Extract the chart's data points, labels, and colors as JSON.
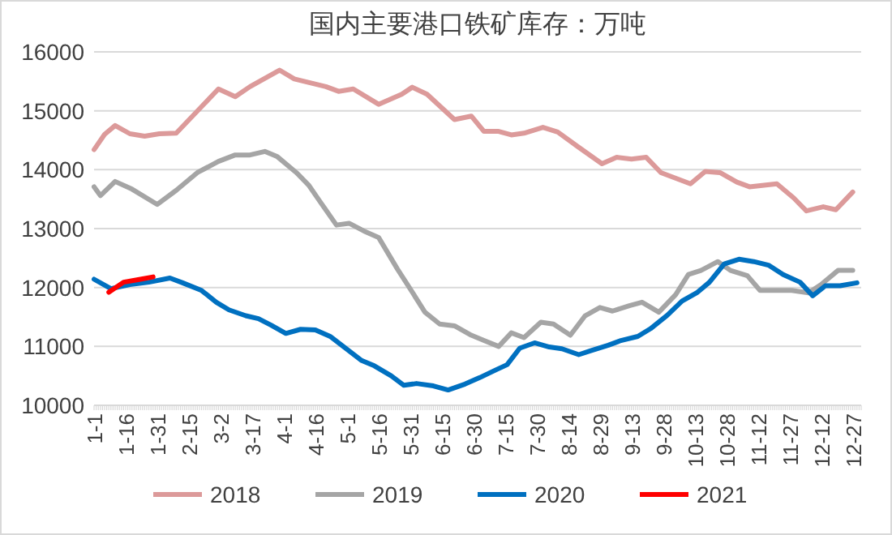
{
  "chart_data": {
    "type": "line",
    "title": "国内主要港口铁矿库存：万吨",
    "xlim": [
      "--01-01",
      "--12-31"
    ],
    "xticks": [
      {
        "value": "--01-01",
        "label": "1-1"
      },
      {
        "value": "--01-16",
        "label": "1-16"
      },
      {
        "value": "--01-31",
        "label": "1-31"
      },
      {
        "value": "--02-15",
        "label": "2-15"
      },
      {
        "value": "--03-02",
        "label": "3-2"
      },
      {
        "value": "--03-17",
        "label": "3-17"
      },
      {
        "value": "--04-01",
        "label": "4-1"
      },
      {
        "value": "--04-16",
        "label": "4-16"
      },
      {
        "value": "--05-01",
        "label": "5-1"
      },
      {
        "value": "--05-16",
        "label": "5-16"
      },
      {
        "value": "--05-31",
        "label": "5-31"
      },
      {
        "value": "--06-15",
        "label": "6-15"
      },
      {
        "value": "--06-30",
        "label": "6-30"
      },
      {
        "value": "--07-15",
        "label": "7-15"
      },
      {
        "value": "--07-30",
        "label": "7-30"
      },
      {
        "value": "--08-14",
        "label": "8-14"
      },
      {
        "value": "--08-29",
        "label": "8-29"
      },
      {
        "value": "--09-13",
        "label": "9-13"
      },
      {
        "value": "--09-28",
        "label": "9-28"
      },
      {
        "value": "--10-13",
        "label": "10-13"
      },
      {
        "value": "--10-28",
        "label": "10-28"
      },
      {
        "value": "--11-12",
        "label": "11-12"
      },
      {
        "value": "--11-27",
        "label": "11-27"
      },
      {
        "value": "--12-12",
        "label": "12-12"
      },
      {
        "value": "--12-27",
        "label": "12-27"
      }
    ],
    "ylim": [
      10000,
      16000
    ],
    "yticks": [
      10000,
      11000,
      12000,
      13000,
      14000,
      15000,
      16000
    ],
    "grid": "y",
    "legend": "bottom",
    "marker": "none",
    "line_style": "solid",
    "series": [
      {
        "name": "2018",
        "color": "#dc9a9a",
        "x": [
          "--01-01",
          "--01-06",
          "--01-11",
          "--01-18",
          "--01-25",
          "--02-01",
          "--02-09",
          "--03-01",
          "--03-09",
          "--03-16",
          "--03-30",
          "--04-06",
          "--04-21",
          "--04-27",
          "--05-04",
          "--05-16",
          "--05-27",
          "--06-01",
          "--06-08",
          "--06-21",
          "--06-29",
          "--07-05",
          "--07-12",
          "--07-18",
          "--07-24",
          "--08-02",
          "--08-09",
          "--08-19",
          "--08-30",
          "--09-06",
          "--09-13",
          "--09-20",
          "--09-27",
          "--10-11",
          "--10-18",
          "--10-25",
          "--11-02",
          "--11-08",
          "--11-21",
          "--11-29",
          "--12-05",
          "--12-13",
          "--12-19",
          "--12-27"
        ],
        "values": [
          14340,
          14600,
          14750,
          14610,
          14570,
          14610,
          14620,
          15370,
          15240,
          15410,
          15690,
          15540,
          15410,
          15330,
          15370,
          15110,
          15280,
          15400,
          15280,
          14850,
          14910,
          14650,
          14650,
          14590,
          14620,
          14720,
          14640,
          14380,
          14100,
          14210,
          14180,
          14210,
          13950,
          13760,
          13970,
          13950,
          13790,
          13710,
          13760,
          13520,
          13300,
          13370,
          13320,
          13620
        ]
      },
      {
        "name": "2019",
        "color": "#a5a5a5",
        "x": [
          "--01-01",
          "--01-04",
          "--01-11",
          "--01-19",
          "--01-31",
          "--02-09",
          "--02-19",
          "--03-01",
          "--03-09",
          "--03-16",
          "--03-23",
          "--03-29",
          "--04-07",
          "--04-13",
          "--04-18",
          "--04-26",
          "--05-02",
          "--05-09",
          "--05-16",
          "--05-25",
          "--06-01",
          "--06-07",
          "--06-14",
          "--06-21",
          "--06-29",
          "--07-05",
          "--07-12",
          "--07-18",
          "--07-24",
          "--08-01",
          "--08-07",
          "--08-15",
          "--08-22",
          "--08-29",
          "--09-04",
          "--09-12",
          "--09-18",
          "--09-26",
          "--10-04",
          "--10-10",
          "--10-16",
          "--10-24",
          "--10-30",
          "--11-07",
          "--11-13",
          "--11-22",
          "--11-28",
          "--12-06",
          "--12-12",
          "--12-20",
          "--12-27"
        ],
        "values": [
          13710,
          13560,
          13800,
          13670,
          13410,
          13650,
          13950,
          14140,
          14250,
          14250,
          14310,
          14220,
          13950,
          13730,
          13470,
          13060,
          13090,
          12960,
          12850,
          12310,
          11920,
          11580,
          11380,
          11350,
          11190,
          11100,
          11000,
          11230,
          11150,
          11410,
          11380,
          11190,
          11520,
          11660,
          11600,
          11690,
          11750,
          11580,
          11880,
          12220,
          12290,
          12440,
          12290,
          12200,
          11950,
          11950,
          11950,
          11910,
          12050,
          12290,
          12290
        ]
      },
      {
        "name": "2020",
        "color": "#0070c0",
        "x": [
          "--01-01",
          "--01-09",
          "--01-18",
          "--01-27",
          "--02-06",
          "--02-12",
          "--02-21",
          "--02-28",
          "--03-06",
          "--03-14",
          "--03-20",
          "--03-26",
          "--04-02",
          "--04-09",
          "--04-16",
          "--04-23",
          "--05-01",
          "--05-08",
          "--05-14",
          "--05-22",
          "--05-28",
          "--06-03",
          "--06-11",
          "--06-18",
          "--06-26",
          "--07-03",
          "--07-10",
          "--07-16",
          "--07-22",
          "--07-29",
          "--08-05",
          "--08-11",
          "--08-19",
          "--08-25",
          "--09-02",
          "--09-08",
          "--09-16",
          "--09-22",
          "--09-30",
          "--10-07",
          "--10-14",
          "--10-20",
          "--10-27",
          "--11-03",
          "--11-10",
          "--11-17",
          "--11-24",
          "--12-02",
          "--12-08",
          "--12-14",
          "--12-21",
          "--12-29"
        ],
        "values": [
          12140,
          11980,
          12050,
          12090,
          12160,
          12080,
          11950,
          11750,
          11620,
          11520,
          11470,
          11360,
          11220,
          11290,
          11280,
          11170,
          10950,
          10760,
          10670,
          10500,
          10340,
          10370,
          10330,
          10260,
          10360,
          10470,
          10590,
          10690,
          10970,
          11060,
          10990,
          10960,
          10860,
          10930,
          11020,
          11100,
          11170,
          11300,
          11530,
          11770,
          11910,
          12090,
          12400,
          12480,
          12440,
          12380,
          12220,
          12090,
          11860,
          12030,
          12030,
          12080
        ]
      },
      {
        "name": "2021",
        "color": "#ff0000",
        "x": [
          "--01-08",
          "--01-15",
          "--01-23",
          "--01-29"
        ],
        "values": [
          11920,
          12090,
          12140,
          12180
        ]
      }
    ]
  }
}
